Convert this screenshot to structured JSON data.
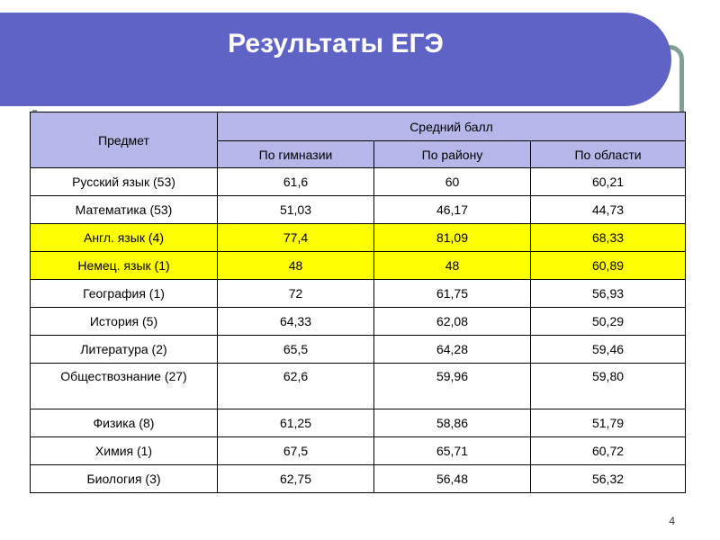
{
  "title": "Результаты ЕГЭ",
  "table": {
    "subject_header": "Предмет",
    "group_header": "Средний балл",
    "columns": [
      "По гимназии",
      "По району",
      "По области"
    ],
    "rows": [
      {
        "subject": "Русский язык (53)",
        "values": [
          "61,6",
          "60",
          "60,21"
        ],
        "highlight": false
      },
      {
        "subject": "Математика (53)",
        "values": [
          "51,03",
          "46,17",
          "44,73"
        ],
        "highlight": false
      },
      {
        "subject": "Англ. язык (4)",
        "values": [
          "77,4",
          "81,09",
          "68,33"
        ],
        "highlight": true
      },
      {
        "subject": "Немец. язык (1)",
        "values": [
          "48",
          "48",
          "60,89"
        ],
        "highlight": true
      },
      {
        "subject": "География (1)",
        "values": [
          "72",
          "61,75",
          "56,93"
        ],
        "highlight": false
      },
      {
        "subject": "История (5)",
        "values": [
          "64,33",
          "62,08",
          "50,29"
        ],
        "highlight": false
      },
      {
        "subject": "Литература (2)",
        "values": [
          "65,5",
          "64,28",
          "59,46"
        ],
        "highlight": false
      },
      {
        "subject": "Обществознание (27)",
        "values": [
          "62,6",
          "59,96",
          "59,80"
        ],
        "highlight": false
      },
      {
        "subject": "Физика (8)",
        "values": [
          "61,25",
          "58,86",
          "51,79"
        ],
        "highlight": false
      },
      {
        "subject": "Химия (1)",
        "values": [
          "67,5",
          "65,71",
          "60,72"
        ],
        "highlight": false
      },
      {
        "subject": "Биология (3)",
        "values": [
          "62,75",
          "56,48",
          "56,32"
        ],
        "highlight": false
      }
    ]
  },
  "page_number": "4",
  "colors": {
    "banner": "#5f63c6",
    "frame": "#7fa08f",
    "header_fill": "#b5b7e8",
    "highlight": "#ffff00"
  }
}
